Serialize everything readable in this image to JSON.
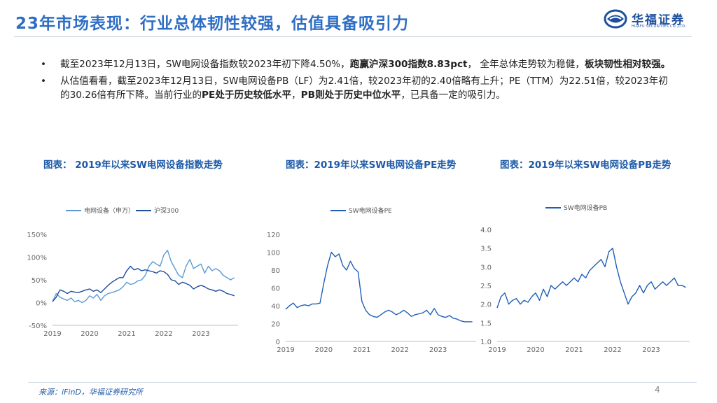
{
  "header": {
    "title": "23年市场表现：行业总体韧性较强，估值具备吸引力",
    "logo_text": "华福证券",
    "logo_sub": "HUAFU SECURITIES CO.,LTD."
  },
  "bullets": [
    {
      "marker": "•",
      "segments": [
        {
          "text": "截至2023年12月13日，SW电网设备指数较2023年初下降4.50%，",
          "bold": false
        },
        {
          "text": "跑赢沪深300指数8.83pct",
          "bold": true
        },
        {
          "text": "， 全年总体走势较为稳健，",
          "bold": false
        },
        {
          "text": "板块韧性相对较强。",
          "bold": true
        }
      ]
    },
    {
      "marker": "•",
      "segments": [
        {
          "text": "从估值看看，截至2023年12月13日，SW电网设备PB（LF）为2.41倍，较2023年初的2.40倍略有上升；PE（TTM）为22.51倍，较2023年初的30.26倍有所下降。当前行业的",
          "bold": false
        },
        {
          "text": "PE处于历史较低水平",
          "bold": true
        },
        {
          "text": "，",
          "bold": false
        },
        {
          "text": "PB则处于历史中位水平",
          "bold": true
        },
        {
          "text": "，已具备一定的吸引力。",
          "bold": false
        }
      ]
    }
  ],
  "charts": {
    "index_title": "图表： 2019年以来SW电网设备指数走势",
    "pe_title": "图表：2019年以来SW电网设备PE走势",
    "pb_title": "图表：2019年以来SW电网设备PB走势"
  },
  "chart_data": [
    {
      "type": "line",
      "title": "图表： 2019年以来SW电网设备指数走势",
      "x_ticks": [
        "2019",
        "2020",
        "2021",
        "2022",
        "2023"
      ],
      "y_ticks": [
        "150%",
        "100%",
        "50%",
        "0%",
        "-50%"
      ],
      "ylim": [
        -50,
        150
      ],
      "xlim": [
        2019.0,
        2024.0
      ],
      "legend_position": "top-left",
      "series": [
        {
          "name": "电网设备（申万）",
          "color": "#5b9bd5",
          "x": [
            2019.0,
            2019.1,
            2019.2,
            2019.3,
            2019.4,
            2019.5,
            2019.6,
            2019.7,
            2019.8,
            2019.9,
            2020.0,
            2020.1,
            2020.2,
            2020.3,
            2020.4,
            2020.5,
            2020.6,
            2020.7,
            2020.8,
            2020.9,
            2021.0,
            2021.1,
            2021.2,
            2021.3,
            2021.4,
            2021.5,
            2021.6,
            2021.7,
            2021.8,
            2021.9,
            2022.0,
            2022.1,
            2022.2,
            2022.3,
            2022.4,
            2022.5,
            2022.6,
            2022.7,
            2022.8,
            2022.9,
            2023.0,
            2023.1,
            2023.2,
            2023.3,
            2023.4,
            2023.5,
            2023.6,
            2023.7,
            2023.8,
            2023.9
          ],
          "y": [
            2,
            20,
            12,
            8,
            5,
            10,
            2,
            5,
            0,
            5,
            15,
            10,
            18,
            5,
            15,
            20,
            22,
            25,
            28,
            35,
            45,
            40,
            42,
            48,
            50,
            60,
            80,
            90,
            85,
            80,
            105,
            115,
            90,
            75,
            60,
            55,
            80,
            95,
            75,
            80,
            85,
            65,
            80,
            70,
            75,
            70,
            60,
            55,
            50,
            55
          ]
        },
        {
          "name": "沪深300",
          "color": "#1f4e9c",
          "x": [
            2019.0,
            2019.1,
            2019.2,
            2019.3,
            2019.4,
            2019.5,
            2019.6,
            2019.7,
            2019.8,
            2019.9,
            2020.0,
            2020.1,
            2020.2,
            2020.3,
            2020.4,
            2020.5,
            2020.6,
            2020.7,
            2020.8,
            2020.9,
            2021.0,
            2021.1,
            2021.2,
            2021.3,
            2021.4,
            2021.5,
            2021.6,
            2021.7,
            2021.8,
            2021.9,
            2022.0,
            2022.1,
            2022.2,
            2022.3,
            2022.4,
            2022.5,
            2022.6,
            2022.7,
            2022.8,
            2022.9,
            2023.0,
            2023.1,
            2023.2,
            2023.3,
            2023.4,
            2023.5,
            2023.6,
            2023.7,
            2023.8,
            2023.9
          ],
          "y": [
            2,
            12,
            28,
            25,
            20,
            25,
            23,
            22,
            25,
            28,
            30,
            25,
            28,
            22,
            30,
            38,
            45,
            50,
            55,
            55,
            70,
            80,
            72,
            75,
            70,
            72,
            70,
            68,
            65,
            70,
            68,
            62,
            50,
            48,
            40,
            45,
            42,
            38,
            30,
            35,
            38,
            35,
            30,
            28,
            25,
            28,
            25,
            20,
            18,
            15
          ]
        }
      ]
    },
    {
      "type": "line",
      "title": "图表：2019年以来SW电网设备PE走势",
      "x_ticks": [
        "2019",
        "2020",
        "2021",
        "2022",
        "2023"
      ],
      "y_ticks": [
        "120",
        "100",
        "80",
        "60",
        "40",
        "20",
        "0"
      ],
      "ylim": [
        0,
        120
      ],
      "xlim": [
        2019.0,
        2024.0
      ],
      "legend_position": "top-left",
      "series": [
        {
          "name": "SW电网设备PE",
          "color": "#1f5fb8",
          "x": [
            2019.0,
            2019.1,
            2019.2,
            2019.3,
            2019.4,
            2019.5,
            2019.6,
            2019.7,
            2019.8,
            2019.9,
            2020.0,
            2020.1,
            2020.2,
            2020.3,
            2020.4,
            2020.5,
            2020.6,
            2020.7,
            2020.8,
            2020.9,
            2021.0,
            2021.1,
            2021.2,
            2021.3,
            2021.4,
            2021.5,
            2021.6,
            2021.7,
            2021.8,
            2021.9,
            2022.0,
            2022.1,
            2022.2,
            2022.3,
            2022.4,
            2022.5,
            2022.6,
            2022.7,
            2022.8,
            2022.9,
            2023.0,
            2023.1,
            2023.2,
            2023.3,
            2023.4,
            2023.5,
            2023.6,
            2023.7,
            2023.8,
            2023.9
          ],
          "y": [
            36,
            40,
            43,
            38,
            40,
            41,
            40,
            42,
            42,
            43,
            65,
            85,
            100,
            95,
            98,
            85,
            80,
            90,
            82,
            78,
            45,
            35,
            30,
            28,
            27,
            30,
            33,
            35,
            33,
            30,
            32,
            35,
            32,
            28,
            30,
            31,
            32,
            35,
            30,
            37,
            30,
            28,
            27,
            29,
            26,
            25,
            23,
            22,
            22,
            22
          ]
        }
      ]
    },
    {
      "type": "line",
      "title": "图表：2019年以来SW电网设备PB走势",
      "x_ticks": [
        "2019",
        "2020",
        "2021",
        "2022",
        "2023"
      ],
      "y_ticks": [
        "4.0",
        "3.5",
        "3.0",
        "2.5",
        "2.0",
        "1.5",
        "1.0"
      ],
      "ylim": [
        1.0,
        4.0
      ],
      "xlim": [
        2019.0,
        2024.0
      ],
      "legend_position": "top-left",
      "series": [
        {
          "name": "SW电网设备PB",
          "color": "#1f5fb8",
          "x": [
            2019.0,
            2019.1,
            2019.2,
            2019.3,
            2019.4,
            2019.5,
            2019.6,
            2019.7,
            2019.8,
            2019.9,
            2020.0,
            2020.1,
            2020.2,
            2020.3,
            2020.4,
            2020.5,
            2020.6,
            2020.7,
            2020.8,
            2020.9,
            2021.0,
            2021.1,
            2021.2,
            2021.3,
            2021.4,
            2021.5,
            2021.6,
            2021.7,
            2021.8,
            2021.9,
            2022.0,
            2022.1,
            2022.2,
            2022.3,
            2022.4,
            2022.5,
            2022.6,
            2022.7,
            2022.8,
            2022.9,
            2023.0,
            2023.1,
            2023.2,
            2023.3,
            2023.4,
            2023.5,
            2023.6,
            2023.7,
            2023.8,
            2023.9
          ],
          "y": [
            1.9,
            2.2,
            2.3,
            2.0,
            2.1,
            2.15,
            2.0,
            2.1,
            2.05,
            2.2,
            2.3,
            2.1,
            2.4,
            2.2,
            2.5,
            2.4,
            2.5,
            2.6,
            2.5,
            2.6,
            2.7,
            2.6,
            2.8,
            2.7,
            2.9,
            3.0,
            3.1,
            3.2,
            3.0,
            3.4,
            3.5,
            3.0,
            2.6,
            2.3,
            2.0,
            2.2,
            2.3,
            2.5,
            2.3,
            2.5,
            2.6,
            2.4,
            2.5,
            2.6,
            2.5,
            2.6,
            2.7,
            2.5,
            2.5,
            2.45
          ]
        }
      ]
    }
  ],
  "footer": {
    "source": "来源：iFinD，华福证券研究所",
    "page": "4"
  }
}
